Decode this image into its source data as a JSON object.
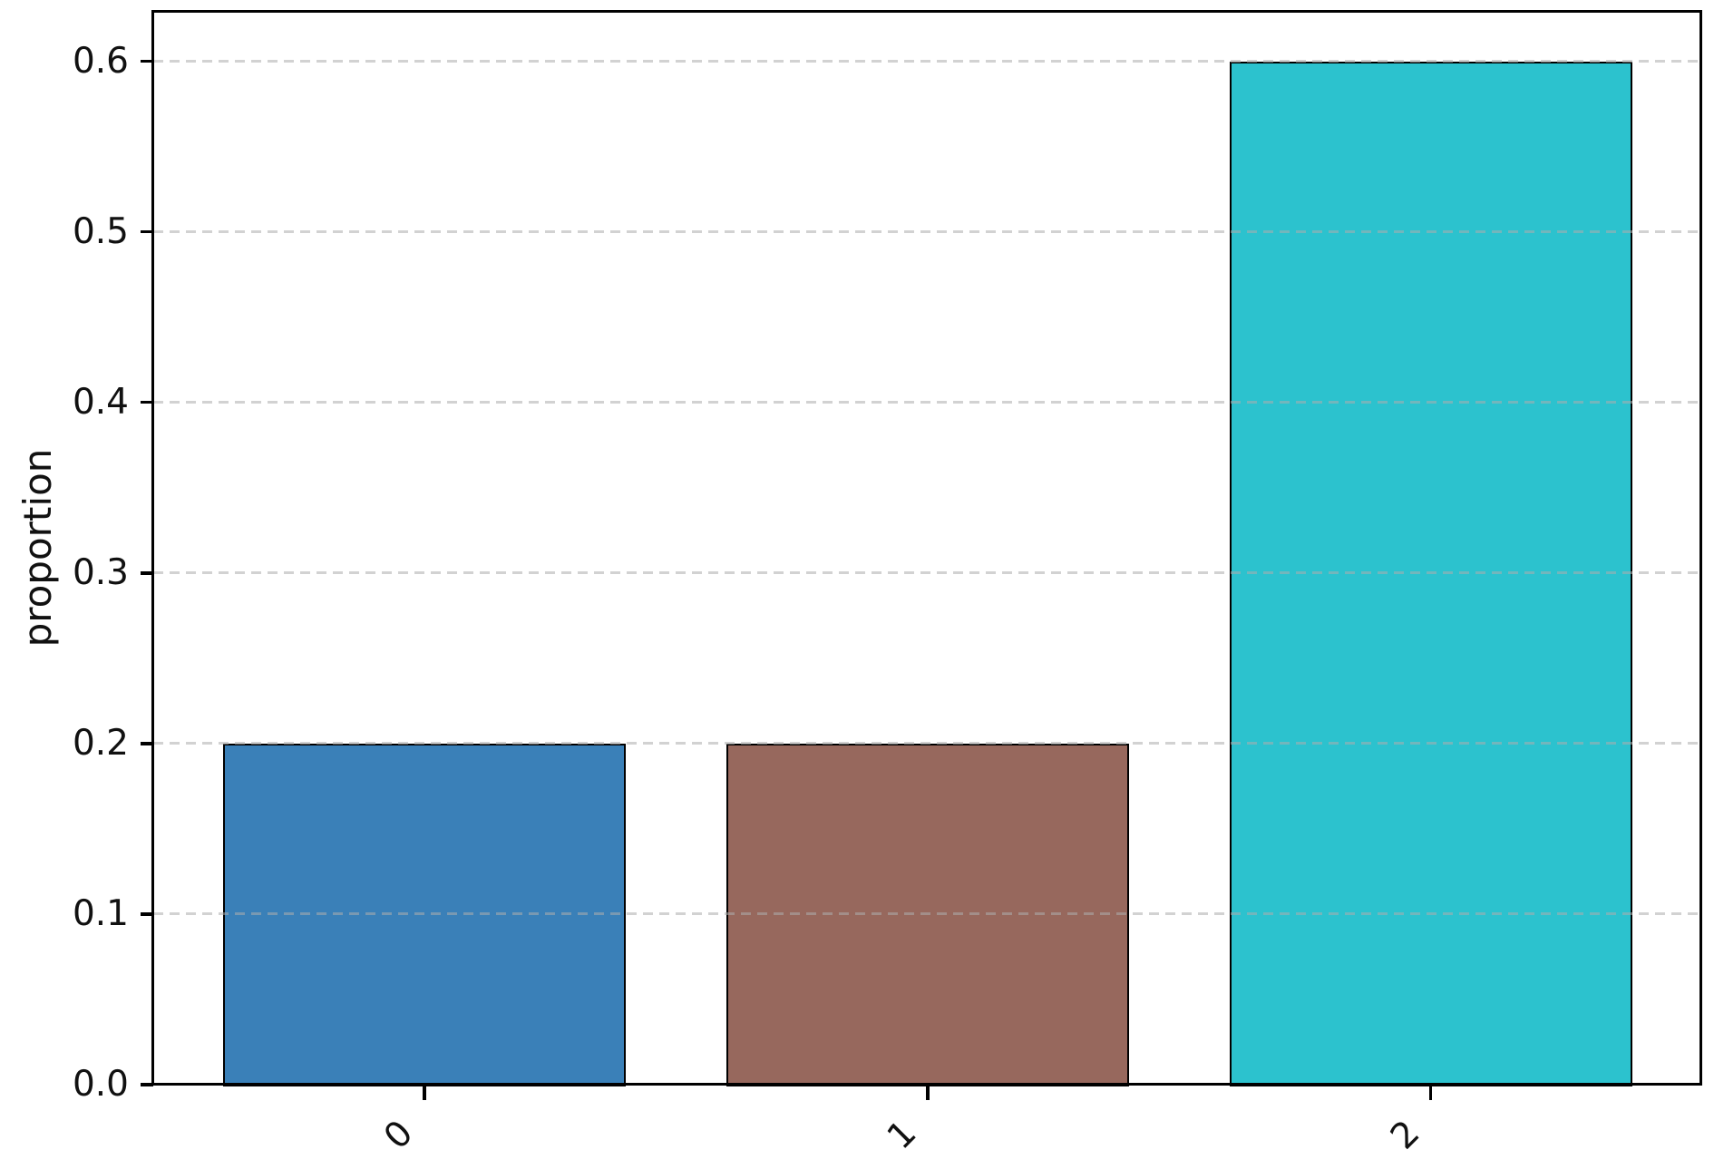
{
  "chart_data": {
    "type": "bar",
    "title": "",
    "xlabel": "",
    "ylabel": "proportion",
    "categories": [
      "0",
      "1",
      "2"
    ],
    "values": [
      0.2,
      0.2,
      0.6
    ],
    "bar_colors": [
      "#3a80b8",
      "#97685d",
      "#2cc2ce"
    ],
    "bar_edge_color": "#000000",
    "bar_width": 0.8,
    "yticks": [
      0.0,
      0.1,
      0.2,
      0.3,
      0.4,
      0.5,
      0.6
    ],
    "ytick_labels": [
      "0.0",
      "0.1",
      "0.2",
      "0.3",
      "0.4",
      "0.5",
      "0.6"
    ],
    "ylim": [
      0,
      0.629
    ],
    "xlim": [
      -0.539,
      2.536
    ],
    "xtick_rotation_deg": 45,
    "grid": "horizontal-dashed",
    "grid_color": "#d9d9d9",
    "legend": null
  }
}
